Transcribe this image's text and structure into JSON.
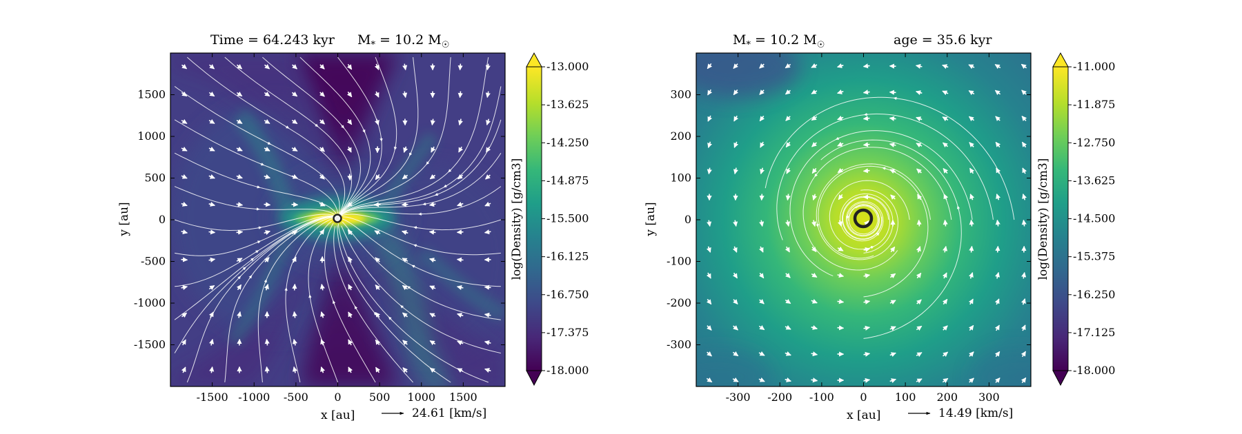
{
  "chart_data": [
    {
      "type": "heatmap",
      "title": "Time = 64.243 kyr    M$_*$ = 10.2 M$_\\odot$",
      "title_parts": {
        "left": "Time = 64.243 kyr",
        "mass_label": "M",
        "mass_sub": "*",
        "mass_value": " = 10.2 M",
        "mass_sun": "☉"
      },
      "xlabel": "x [au]",
      "ylabel": "y [au]",
      "xlim": [
        -2000,
        2000
      ],
      "ylim": [
        -2000,
        2000
      ],
      "xticks": [
        -1500,
        -1000,
        -500,
        0,
        500,
        1000,
        1500
      ],
      "yticks": [
        -1500,
        -1000,
        -500,
        0,
        500,
        1000,
        1500
      ],
      "xtick_labels": [
        "-1500",
        "-1000",
        "-500",
        "0",
        "500",
        "1000",
        "1500"
      ],
      "ytick_labels": [
        "-1500",
        "-1000",
        "-500",
        "0",
        "500",
        "1000",
        "1500"
      ],
      "quiver_key": "24.61 [km/s]",
      "colorbar": {
        "label": "log(Density) [g/cm3]",
        "range": [
          -18.0,
          -13.0
        ],
        "ticks": [
          "-13.000",
          "-13.625",
          "-14.250",
          "-14.875",
          "-15.500",
          "-16.125",
          "-16.750",
          "-17.375",
          "-18.000"
        ],
        "colormap": "viridis",
        "extend": "both"
      },
      "structure": "bipolar outflow cavity along y-axis, flattened dense disk along x-axis, streamlines and velocity vectors overlaid",
      "star_position": [
        0,
        0
      ]
    },
    {
      "type": "heatmap",
      "title": "M$_*$ = 10.2 M$_\\odot$      age = 35.6 kyr",
      "title_parts": {
        "mass_label": "M",
        "mass_sub": "*",
        "mass_value": " = 10.2 M",
        "mass_sun": "☉",
        "right": "age = 35.6 kyr"
      },
      "xlabel": "x [au]",
      "ylabel": "y [au]",
      "xlim": [
        -400,
        400
      ],
      "ylim": [
        -400,
        400
      ],
      "xticks": [
        -300,
        -200,
        -100,
        0,
        100,
        200,
        300
      ],
      "yticks": [
        -300,
        -200,
        -100,
        0,
        100,
        200,
        300
      ],
      "xtick_labels": [
        "-300",
        "-200",
        "-100",
        "0",
        "100",
        "200",
        "300"
      ],
      "ytick_labels": [
        "-300",
        "-200",
        "-100",
        "0",
        "100",
        "200",
        "300"
      ],
      "quiver_key": "14.49 [km/s]",
      "colorbar": {
        "label": "log(Density) [g/cm3]",
        "range": [
          -18.0,
          -11.0
        ],
        "ticks": [
          "-11.000",
          "-11.875",
          "-12.750",
          "-13.625",
          "-14.500",
          "-15.375",
          "-16.250",
          "-17.125",
          "-18.000"
        ],
        "colormap": "viridis",
        "extend": "both"
      },
      "structure": "face-on rotating disk, density peak at center, circular streamlines",
      "star_position": [
        0,
        0
      ]
    }
  ],
  "colors": {
    "viridis_stops": [
      "#440154",
      "#482878",
      "#3e4989",
      "#31688e",
      "#26828e",
      "#1f9e89",
      "#35b779",
      "#6ece58",
      "#b5de2b",
      "#fde725"
    ],
    "streamline": "#ffffff",
    "star_ring": "#222222"
  }
}
